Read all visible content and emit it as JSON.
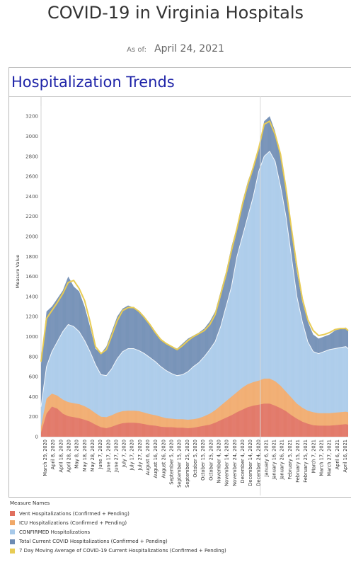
{
  "page": {
    "title": "COVID-19 in Virginia Hospitals",
    "as_of_label": "As of:",
    "as_of_date": "April 24, 2021"
  },
  "panel": {
    "title": "Hospitalization Trends"
  },
  "legend": {
    "title": "Measure Names",
    "items": [
      {
        "label": "Vent Hospitalizations (Confirmed + Pending)",
        "color": "#e06f5e"
      },
      {
        "label": "ICU Hospitalizations (Confirmed + Pending)",
        "color": "#f0a868"
      },
      {
        "label": "CONFIRMED Hospitalizations",
        "color": "#a7c9e9"
      },
      {
        "label": "Total Current COVID Hospitalizations (Confirmed + Pending)",
        "color": "#6d8bb3"
      },
      {
        "label": "7 Day Moving Average of COVID-19 Current Hospitalizations (Confirmed + Pending)",
        "color": "#e8cc55"
      }
    ]
  },
  "chart_data": {
    "type": "area",
    "title": "Hospitalization Trends",
    "ylabel": "Measure Value",
    "xlabel": "",
    "ylim": [
      0,
      3300
    ],
    "yticks": [
      0,
      200,
      400,
      600,
      800,
      1000,
      1200,
      1400,
      1600,
      1800,
      2000,
      2200,
      2400,
      2600,
      2800,
      3000,
      3200
    ],
    "x_ticks": [
      "March 29, 2020",
      "April 8, 2020",
      "April 18, 2020",
      "April 28, 2020",
      "May 8, 2020",
      "May 18, 2020",
      "May 28, 2020",
      "June 7, 2020",
      "June 17, 2020",
      "June 27, 2020",
      "July 7, 2020",
      "July 17, 2020",
      "July 27, 2020",
      "August 6, 2020",
      "August 16, 2020",
      "August 26, 2020",
      "September 5, 2020",
      "September 15, 2020",
      "September 25, 2020",
      "October 5, 2020",
      "October 15, 2020",
      "October 25, 2020",
      "November 4, 2020",
      "November 14, 2020",
      "November 24, 2020",
      "December 4, 2020",
      "December 14, 2020",
      "December 24, 2020",
      "January 6, 2021",
      "January 16, 2021",
      "January 26, 2021",
      "February 5, 2021",
      "February 15, 2021",
      "February 25, 2021",
      "March 7, 2021",
      "March 17, 2021",
      "March 27, 2021",
      "April 6, 2021",
      "April 16, 2021"
    ],
    "x": [
      "2020-03-25",
      "2020-04-01",
      "2020-04-08",
      "2020-04-15",
      "2020-04-22",
      "2020-04-29",
      "2020-05-06",
      "2020-05-13",
      "2020-05-20",
      "2020-05-27",
      "2020-06-03",
      "2020-06-10",
      "2020-06-17",
      "2020-06-24",
      "2020-07-01",
      "2020-07-08",
      "2020-07-15",
      "2020-07-22",
      "2020-07-29",
      "2020-08-05",
      "2020-08-12",
      "2020-08-19",
      "2020-08-26",
      "2020-09-02",
      "2020-09-09",
      "2020-09-16",
      "2020-09-23",
      "2020-09-30",
      "2020-10-07",
      "2020-10-14",
      "2020-10-21",
      "2020-10-28",
      "2020-11-04",
      "2020-11-11",
      "2020-11-18",
      "2020-11-25",
      "2020-12-02",
      "2020-12-09",
      "2020-12-16",
      "2020-12-23",
      "2020-12-30",
      "2021-01-06",
      "2021-01-13",
      "2021-01-20",
      "2021-01-27",
      "2021-02-03",
      "2021-02-10",
      "2021-02-17",
      "2021-02-24",
      "2021-03-03",
      "2021-03-10",
      "2021-03-17",
      "2021-03-24",
      "2021-03-31",
      "2021-04-07",
      "2021-04-14",
      "2021-04-21",
      "2021-04-24"
    ],
    "series": [
      {
        "name": "Vent Hospitalizations (Confirmed + Pending)",
        "color": "#e06f5e",
        "values": [
          40,
          230,
          300,
          280,
          230,
          205,
          195,
          185,
          170,
          150,
          120,
          95,
          85,
          100,
          120,
          135,
          140,
          140,
          135,
          125,
          115,
          110,
          100,
          95,
          95,
          90,
          90,
          85,
          90,
          100,
          110,
          120,
          140,
          165,
          190,
          215,
          245,
          270,
          295,
          310,
          320,
          330,
          330,
          310,
          285,
          255,
          215,
          180,
          150,
          130,
          115,
          110,
          110,
          110,
          115,
          120,
          125,
          120
        ]
      },
      {
        "name": "ICU Hospitalizations (Confirmed + Pending)",
        "color": "#f0a868",
        "values": [
          100,
          380,
          430,
          410,
          370,
          345,
          335,
          325,
          305,
          275,
          235,
          200,
          195,
          215,
          240,
          255,
          260,
          260,
          255,
          240,
          225,
          215,
          200,
          185,
          180,
          175,
          175,
          170,
          175,
          185,
          205,
          230,
          265,
          310,
          355,
          400,
          445,
          490,
          525,
          545,
          560,
          580,
          580,
          555,
          510,
          450,
          390,
          330,
          290,
          260,
          245,
          235,
          235,
          235,
          240,
          245,
          250,
          245
        ]
      },
      {
        "name": "CONFIRMED Hospitalizations",
        "color": "#a7c9e9",
        "values": [
          300,
          700,
          850,
          950,
          1050,
          1120,
          1100,
          1050,
          960,
          850,
          720,
          620,
          610,
          680,
          780,
          850,
          880,
          880,
          860,
          830,
          790,
          750,
          700,
          660,
          630,
          610,
          620,
          650,
          700,
          740,
          800,
          870,
          950,
          1100,
          1300,
          1500,
          1800,
          2000,
          2200,
          2400,
          2650,
          2800,
          2850,
          2750,
          2500,
          2200,
          1800,
          1400,
          1150,
          950,
          850,
          830,
          850,
          870,
          880,
          890,
          900,
          880
        ]
      },
      {
        "name": "Total Current COVID Hospitalizations (Confirmed + Pending)",
        "color": "#6d8bb3",
        "values": [
          720,
          1250,
          1300,
          1380,
          1460,
          1600,
          1500,
          1450,
          1300,
          1100,
          880,
          830,
          900,
          1050,
          1200,
          1280,
          1310,
          1290,
          1260,
          1200,
          1120,
          1050,
          980,
          930,
          900,
          880,
          930,
          980,
          1010,
          1040,
          1080,
          1150,
          1250,
          1450,
          1650,
          1900,
          2100,
          2350,
          2550,
          2700,
          2900,
          3150,
          3200,
          3050,
          2800,
          2450,
          2050,
          1650,
          1350,
          1150,
          1020,
          980,
          1000,
          1020,
          1060,
          1080,
          1090,
          1060
        ]
      },
      {
        "name": "7 Day Moving Average of COVID-19 Current Hospitalizations (Confirmed + Pending)",
        "color": "#e8cc55",
        "values": [
          750,
          1180,
          1260,
          1340,
          1430,
          1540,
          1560,
          1480,
          1360,
          1150,
          900,
          830,
          870,
          1010,
          1160,
          1260,
          1290,
          1290,
          1250,
          1190,
          1120,
          1040,
          970,
          930,
          900,
          870,
          910,
          960,
          1000,
          1030,
          1060,
          1120,
          1220,
          1420,
          1620,
          1860,
          2080,
          2320,
          2520,
          2690,
          2880,
          3120,
          3150,
          3020,
          2820,
          2480,
          2080,
          1700,
          1380,
          1170,
          1060,
          1010,
          1020,
          1040,
          1070,
          1080,
          1080,
          1060
        ]
      }
    ],
    "legend_position": "bottom",
    "grid": false
  }
}
